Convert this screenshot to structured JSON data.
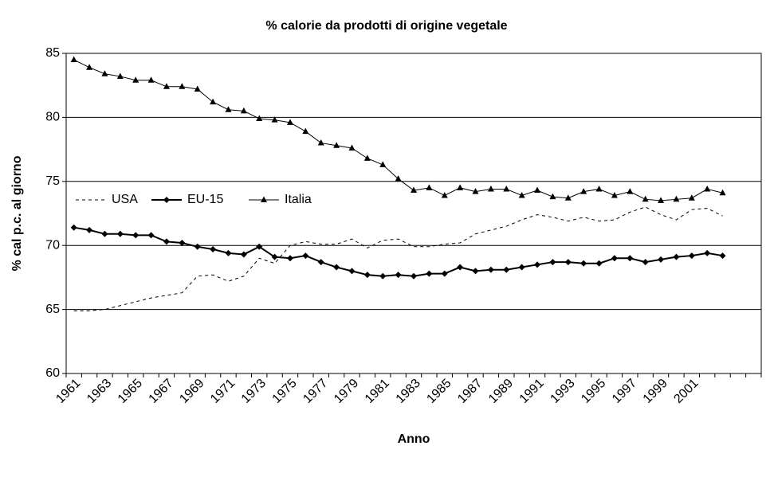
{
  "chart_data": {
    "type": "line",
    "title": "% calorie da prodotti di origine vegetale",
    "x_label": "Anno",
    "y_label": "% cal p.c. al giorno",
    "categories": [
      "1961",
      null,
      "1963",
      null,
      "1965",
      null,
      "1967",
      null,
      "1969",
      null,
      "1971",
      null,
      "1973",
      null,
      "1975",
      null,
      "1977",
      null,
      "1979",
      null,
      "1981",
      null,
      "1983",
      null,
      "1985",
      null,
      "1987",
      null,
      "1989",
      null,
      "1991",
      null,
      "1993",
      null,
      "1995",
      null,
      "1997",
      null,
      "1999",
      null,
      "2001",
      null,
      null,
      null,
      null
    ],
    "series": [
      {
        "name": "USA",
        "color": "#000000",
        "dash": true,
        "marker": "none",
        "values": [
          64.9,
          64.9,
          65.0,
          65.3,
          65.6,
          65.9,
          66.1,
          66.3,
          67.6,
          67.7,
          67.2,
          67.6,
          69.0,
          68.6,
          70.0,
          70.3,
          70.1,
          70.1,
          70.5,
          69.8,
          70.4,
          70.5,
          69.9,
          69.9,
          70.1,
          70.2,
          70.9,
          71.2,
          71.5,
          72.0,
          72.4,
          72.2,
          71.9,
          72.2,
          71.9,
          72.0,
          72.6,
          73.0,
          72.4,
          72.0,
          72.8,
          72.9,
          72.3,
          null,
          null
        ]
      },
      {
        "name": "EU-15",
        "color": "#000000",
        "dash": false,
        "marker": "diamond",
        "values": [
          71.4,
          71.2,
          70.9,
          70.9,
          70.8,
          70.8,
          70.3,
          70.2,
          69.9,
          69.7,
          69.4,
          69.3,
          69.9,
          69.1,
          69.0,
          69.2,
          68.7,
          68.3,
          68.0,
          67.7,
          67.6,
          67.7,
          67.6,
          67.8,
          67.8,
          68.3,
          68.0,
          68.1,
          68.1,
          68.3,
          68.5,
          68.7,
          68.7,
          68.6,
          68.6,
          69.0,
          69.0,
          68.7,
          68.9,
          69.1,
          69.2,
          69.4,
          69.2,
          null,
          null
        ]
      },
      {
        "name": "Italia",
        "color": "#000000",
        "dash": false,
        "marker": "triangle",
        "values": [
          84.5,
          83.9,
          83.4,
          83.2,
          82.9,
          82.9,
          82.4,
          82.4,
          82.2,
          81.2,
          80.6,
          80.5,
          79.9,
          79.8,
          79.6,
          78.9,
          78.0,
          77.8,
          77.6,
          76.8,
          76.3,
          75.2,
          74.3,
          74.5,
          73.9,
          74.5,
          74.2,
          74.4,
          74.4,
          73.9,
          74.3,
          73.8,
          73.7,
          74.2,
          74.4,
          73.9,
          74.2,
          73.6,
          73.5,
          73.6,
          73.7,
          74.4,
          74.1,
          null,
          null
        ]
      }
    ],
    "ylim": [
      60,
      85
    ],
    "yticks": [
      60,
      65,
      70,
      75,
      80,
      85
    ],
    "grid": true,
    "legend": "left"
  }
}
